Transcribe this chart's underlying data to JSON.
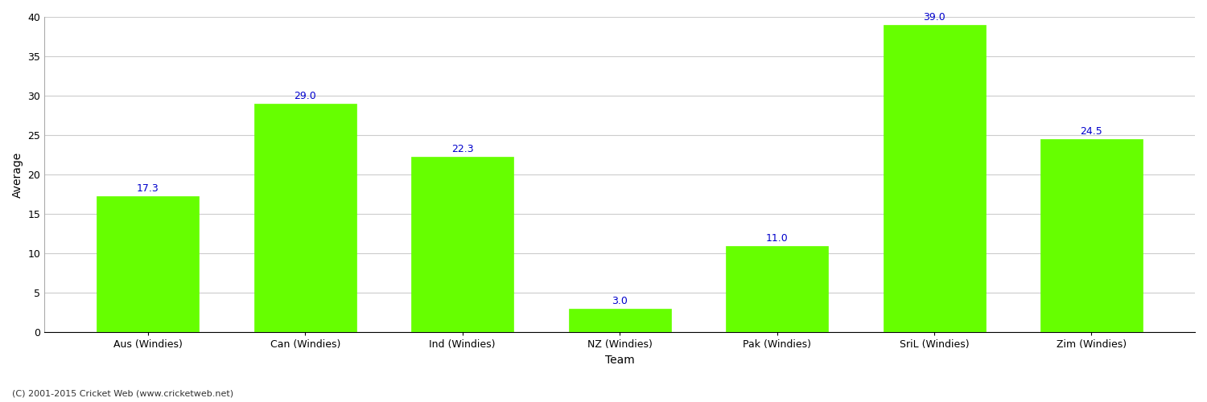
{
  "categories": [
    "Aus (Windies)",
    "Can (Windies)",
    "Ind (Windies)",
    "NZ (Windies)",
    "Pak (Windies)",
    "SriL (Windies)",
    "Zim (Windies)"
  ],
  "values": [
    17.3,
    29.0,
    22.3,
    3.0,
    11.0,
    39.0,
    24.5
  ],
  "bar_color": "#66ff00",
  "bar_edgecolor": "#66ff00",
  "label_color": "#0000cc",
  "xlabel": "Team",
  "ylabel": "Average",
  "ylim": [
    0,
    40
  ],
  "yticks": [
    0,
    5,
    10,
    15,
    20,
    25,
    30,
    35,
    40
  ],
  "grid_color": "#cccccc",
  "background_color": "#ffffff",
  "figure_width": 15.0,
  "figure_height": 5.0,
  "dpi": 100,
  "footnote": "(C) 2001-2015 Cricket Web (www.cricketweb.net)",
  "label_fontsize": 9,
  "axis_label_fontsize": 10,
  "tick_fontsize": 9,
  "bar_width": 0.65
}
